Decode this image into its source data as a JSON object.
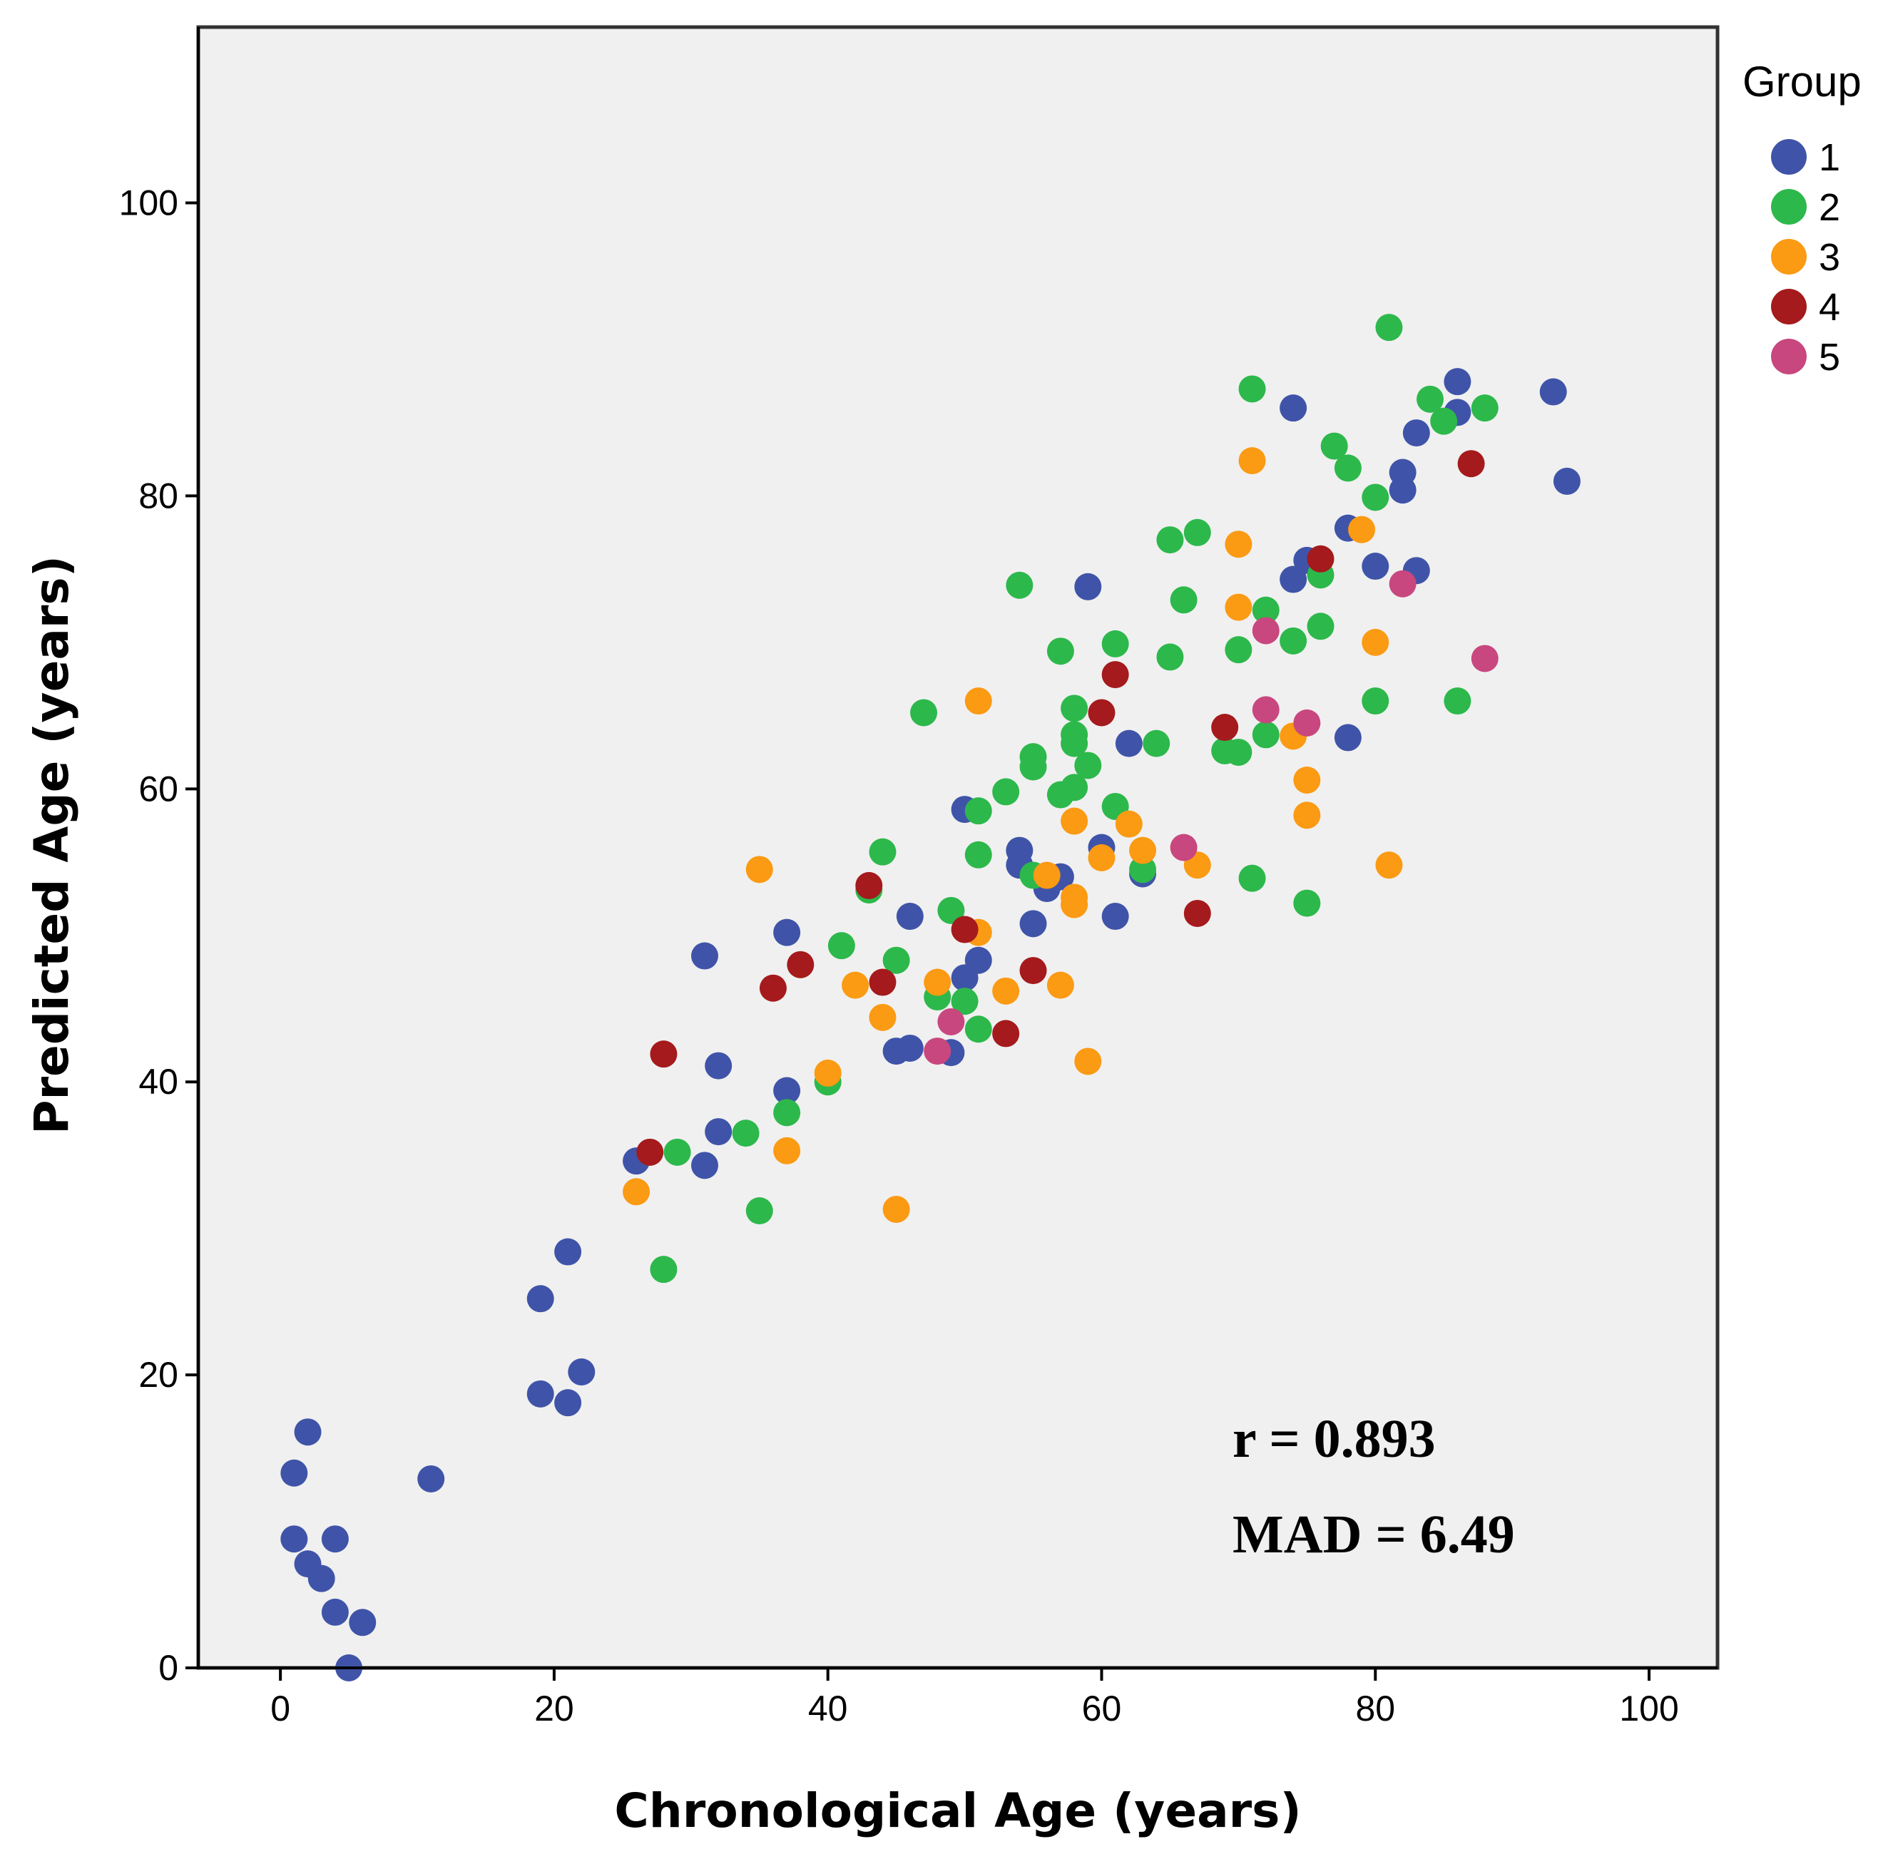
{
  "chart_data": {
    "type": "scatter",
    "xlabel": "Chronological Age (years)",
    "ylabel": "Predicted Age (years)",
    "xlim": [
      -6,
      105
    ],
    "ylim": [
      0,
      112
    ],
    "xticks": [
      0,
      20,
      40,
      60,
      80,
      100
    ],
    "yticks": [
      0,
      20,
      40,
      60,
      80,
      100
    ],
    "grid": false,
    "legend": {
      "title": "Group",
      "position": "right"
    },
    "annotations": {
      "r": "r = 0.893",
      "mad": "MAD = 6.49"
    },
    "series": [
      {
        "name": "1",
        "color": "#3f54a8",
        "points": [
          [
            1,
            13.3
          ],
          [
            2,
            16.1
          ],
          [
            1,
            8.8
          ],
          [
            2,
            7.1
          ],
          [
            3,
            6.1
          ],
          [
            4,
            8.8
          ],
          [
            4,
            3.8
          ],
          [
            6,
            3.1
          ],
          [
            5,
            0
          ],
          [
            11,
            12.9
          ],
          [
            19,
            25.2
          ],
          [
            21,
            28.4
          ],
          [
            19,
            18.7
          ],
          [
            21,
            18.1
          ],
          [
            22,
            20.2
          ],
          [
            26,
            34.6
          ],
          [
            31,
            34.3
          ],
          [
            32,
            36.6
          ],
          [
            31,
            48.6
          ],
          [
            32,
            41.1
          ],
          [
            37,
            39.4
          ],
          [
            37,
            50.2
          ],
          [
            45,
            42.1
          ],
          [
            46,
            42.3
          ],
          [
            46,
            51.3
          ],
          [
            49,
            42
          ],
          [
            50,
            58.6
          ],
          [
            50,
            47.1
          ],
          [
            51,
            48.3
          ],
          [
            54,
            55.8
          ],
          [
            54,
            54.8
          ],
          [
            55,
            50.8
          ],
          [
            56,
            53.2
          ],
          [
            57,
            54
          ],
          [
            59,
            73.8
          ],
          [
            60,
            56
          ],
          [
            61,
            51.3
          ],
          [
            62,
            63.1
          ],
          [
            63,
            54.2
          ],
          [
            74,
            86
          ],
          [
            74,
            74.3
          ],
          [
            75,
            75.6
          ],
          [
            78,
            77.8
          ],
          [
            78,
            63.5
          ],
          [
            80,
            75.2
          ],
          [
            82,
            81.6
          ],
          [
            82,
            80.4
          ],
          [
            83,
            84.3
          ],
          [
            83,
            74.9
          ],
          [
            86,
            87.8
          ],
          [
            86,
            85.7
          ],
          [
            93,
            87.1
          ],
          [
            94,
            81
          ]
        ]
      },
      {
        "name": "2",
        "color": "#2db84b",
        "points": [
          [
            28,
            27.2
          ],
          [
            29,
            35.2
          ],
          [
            34,
            36.5
          ],
          [
            35,
            31.2
          ],
          [
            37,
            37.9
          ],
          [
            40,
            40
          ],
          [
            41,
            49.3
          ],
          [
            43,
            53.1
          ],
          [
            44,
            55.7
          ],
          [
            45,
            48.3
          ],
          [
            47,
            65.2
          ],
          [
            48,
            45.8
          ],
          [
            49,
            51.7
          ],
          [
            50,
            45.5
          ],
          [
            51,
            58.5
          ],
          [
            51,
            55.5
          ],
          [
            51,
            43.6
          ],
          [
            53,
            59.8
          ],
          [
            54,
            73.9
          ],
          [
            55,
            62.2
          ],
          [
            55,
            61.5
          ],
          [
            55,
            54.1
          ],
          [
            57,
            69.4
          ],
          [
            57,
            59.6
          ],
          [
            58,
            65.5
          ],
          [
            58,
            63.7
          ],
          [
            58,
            63.1
          ],
          [
            58,
            60.1
          ],
          [
            59,
            61.6
          ],
          [
            61,
            69.9
          ],
          [
            61,
            58.8
          ],
          [
            63,
            54.5
          ],
          [
            64,
            63.1
          ],
          [
            65,
            69
          ],
          [
            65,
            77
          ],
          [
            66,
            72.9
          ],
          [
            67,
            77.5
          ],
          [
            69,
            62.6
          ],
          [
            70,
            62.5
          ],
          [
            70,
            69.5
          ],
          [
            71,
            87.3
          ],
          [
            71,
            53.9
          ],
          [
            72,
            72.2
          ],
          [
            72,
            63.7
          ],
          [
            74,
            70.1
          ],
          [
            76,
            74.6
          ],
          [
            76,
            71.1
          ],
          [
            77,
            83.4
          ],
          [
            78,
            81.9
          ],
          [
            75,
            52.2
          ],
          [
            80,
            79.9
          ],
          [
            80,
            66
          ],
          [
            81,
            91.5
          ],
          [
            84,
            86.6
          ],
          [
            85,
            85.1
          ],
          [
            86,
            66
          ],
          [
            88,
            86
          ]
        ]
      },
      {
        "name": "3",
        "color": "#fb9a13",
        "points": [
          [
            26,
            32.5
          ],
          [
            35,
            54.5
          ],
          [
            37,
            35.3
          ],
          [
            40,
            40.6
          ],
          [
            42,
            46.6
          ],
          [
            44,
            44.4
          ],
          [
            45,
            31.3
          ],
          [
            48,
            46.8
          ],
          [
            51,
            66
          ],
          [
            51,
            50.2
          ],
          [
            53,
            46.2
          ],
          [
            56,
            54.1
          ],
          [
            57,
            46.6
          ],
          [
            58,
            57.8
          ],
          [
            58,
            52.6
          ],
          [
            58,
            52.1
          ],
          [
            59,
            41.4
          ],
          [
            60,
            55.3
          ],
          [
            62,
            57.6
          ],
          [
            63,
            55.8
          ],
          [
            67,
            54.8
          ],
          [
            70,
            72.4
          ],
          [
            70,
            76.7
          ],
          [
            71,
            82.4
          ],
          [
            74,
            63.6
          ],
          [
            75,
            60.6
          ],
          [
            75,
            58.2
          ],
          [
            79,
            77.7
          ],
          [
            80,
            70
          ],
          [
            81,
            54.8
          ]
        ]
      },
      {
        "name": "4",
        "color": "#a51a1c",
        "points": [
          [
            27,
            35.2
          ],
          [
            28,
            41.9
          ],
          [
            36,
            46.4
          ],
          [
            38,
            48
          ],
          [
            43,
            53.4
          ],
          [
            44,
            46.8
          ],
          [
            50,
            50.4
          ],
          [
            53,
            43.3
          ],
          [
            55,
            47.6
          ],
          [
            60,
            65.2
          ],
          [
            61,
            67.8
          ],
          [
            67,
            51.5
          ],
          [
            69,
            64.2
          ],
          [
            76,
            75.7
          ],
          [
            87,
            82.2
          ]
        ]
      },
      {
        "name": "5",
        "color": "#c8477f",
        "points": [
          [
            48,
            42.1
          ],
          [
            49,
            44.1
          ],
          [
            66,
            56
          ],
          [
            72,
            70.8
          ],
          [
            72,
            65.4
          ],
          [
            75,
            64.5
          ],
          [
            82,
            74
          ],
          [
            88,
            68.9
          ]
        ]
      }
    ]
  }
}
